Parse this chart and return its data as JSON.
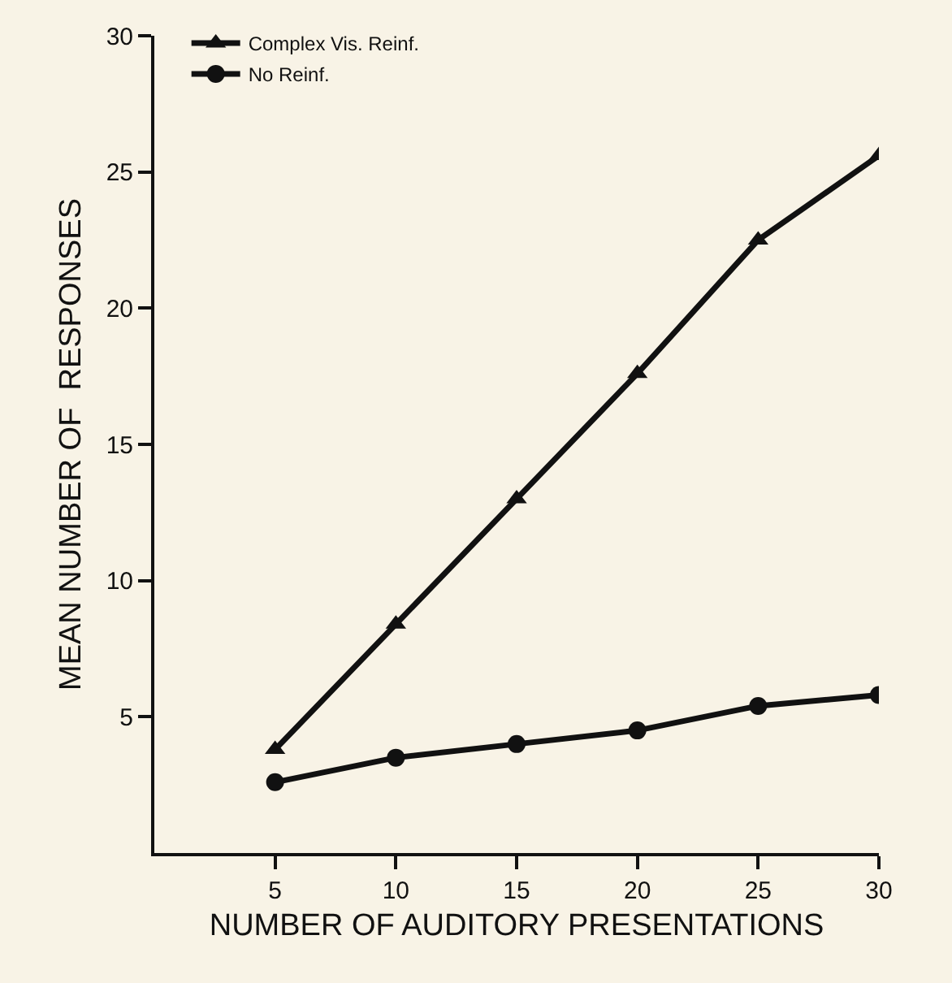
{
  "chart_data": {
    "type": "line",
    "xlabel": "NUMBER OF AUDITORY PRESENTATIONS",
    "ylabel": "MEAN NUMBER OF  RESPONSES",
    "x": [
      5,
      10,
      15,
      20,
      25,
      30
    ],
    "series": [
      {
        "name": "Complex Vis. Reinf.",
        "color": "#111111",
        "marker": "triangle",
        "values": [
          3.8,
          8.4,
          13,
          17.6,
          22.5,
          25.6
        ]
      },
      {
        "name": "No Reinf.",
        "color": "#111111",
        "marker": "circle",
        "values": [
          2.6,
          3.5,
          4,
          4.5,
          5.4,
          5.8
        ]
      }
    ],
    "xlim": [
      0,
      30
    ],
    "xticks": [
      5,
      10,
      15,
      20,
      25,
      30
    ],
    "ylim": [
      0,
      30
    ],
    "yticks": [
      5,
      10,
      15,
      20,
      25,
      30
    ],
    "grid": false,
    "legend": "top left",
    "line_style": "solid"
  }
}
